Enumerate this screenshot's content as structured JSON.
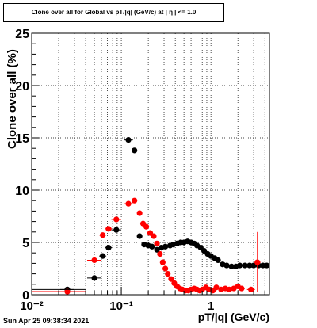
{
  "chart_data": {
    "type": "scatter",
    "title": "Clone  over all for Global vs pT/|q| (GeV/c) at |  η | <= 1.0",
    "xlabel": "pT/|q| (GeV/c)",
    "ylabel": "Clone  over all (%)",
    "x_scale": "log",
    "xlim": [
      0.01,
      4.5
    ],
    "ylim": [
      0,
      25
    ],
    "grid": true,
    "x_tick_labels": [
      {
        "value": 0.01,
        "label": "10⁻²"
      },
      {
        "value": 0.1,
        "label": "10⁻¹"
      },
      {
        "value": 1,
        "label": "1"
      }
    ],
    "y_tick_labels": [
      {
        "value": 0,
        "label": "0"
      },
      {
        "value": 5,
        "label": "5"
      },
      {
        "value": 10,
        "label": "10"
      },
      {
        "value": 15,
        "label": "15"
      },
      {
        "value": 20,
        "label": "20"
      },
      {
        "value": 25,
        "label": "25"
      }
    ],
    "series": [
      {
        "color": "#000000",
        "points": [
          {
            "x": 0.025,
            "y": 0.5
          },
          {
            "x": 0.05,
            "y": 1.6
          },
          {
            "x": 0.062,
            "y": 3.7
          },
          {
            "x": 0.072,
            "y": 4.5
          },
          {
            "x": 0.088,
            "y": 6.2
          },
          {
            "x": 0.12,
            "y": 14.8
          },
          {
            "x": 0.14,
            "y": 13.8
          },
          {
            "x": 0.16,
            "y": 5.6
          },
          {
            "x": 0.18,
            "y": 4.8
          },
          {
            "x": 0.2,
            "y": 4.7
          },
          {
            "x": 0.22,
            "y": 4.6
          },
          {
            "x": 0.25,
            "y": 4.3
          },
          {
            "x": 0.28,
            "y": 4.5
          },
          {
            "x": 0.31,
            "y": 4.6
          },
          {
            "x": 0.35,
            "y": 4.7
          },
          {
            "x": 0.38,
            "y": 4.8
          },
          {
            "x": 0.42,
            "y": 4.9
          },
          {
            "x": 0.46,
            "y": 5.0
          },
          {
            "x": 0.5,
            "y": 5.0
          },
          {
            "x": 0.55,
            "y": 5.1
          },
          {
            "x": 0.6,
            "y": 5.0
          },
          {
            "x": 0.65,
            "y": 4.9
          },
          {
            "x": 0.7,
            "y": 4.7
          },
          {
            "x": 0.77,
            "y": 4.5
          },
          {
            "x": 0.84,
            "y": 4.2
          },
          {
            "x": 0.92,
            "y": 3.9
          },
          {
            "x": 1.0,
            "y": 3.7
          },
          {
            "x": 1.1,
            "y": 3.5
          },
          {
            "x": 1.2,
            "y": 3.3
          },
          {
            "x": 1.35,
            "y": 2.9
          },
          {
            "x": 1.5,
            "y": 2.8
          },
          {
            "x": 1.7,
            "y": 2.7
          },
          {
            "x": 1.9,
            "y": 2.7
          },
          {
            "x": 2.1,
            "y": 2.8
          },
          {
            "x": 2.4,
            "y": 2.8
          },
          {
            "x": 2.7,
            "y": 2.8
          },
          {
            "x": 3.0,
            "y": 2.8
          },
          {
            "x": 3.4,
            "y": 2.8
          },
          {
            "x": 3.8,
            "y": 2.8
          },
          {
            "x": 4.2,
            "y": 2.8
          }
        ]
      },
      {
        "color": "#ff0000",
        "points": [
          {
            "x": 0.025,
            "y": 0.3
          },
          {
            "x": 0.05,
            "y": 3.3
          },
          {
            "x": 0.062,
            "y": 5.7
          },
          {
            "x": 0.072,
            "y": 6.3
          },
          {
            "x": 0.088,
            "y": 7.2
          },
          {
            "x": 0.12,
            "y": 8.7
          },
          {
            "x": 0.14,
            "y": 9.0
          },
          {
            "x": 0.16,
            "y": 7.8
          },
          {
            "x": 0.175,
            "y": 6.8
          },
          {
            "x": 0.19,
            "y": 6.5
          },
          {
            "x": 0.21,
            "y": 5.9
          },
          {
            "x": 0.23,
            "y": 5.6
          },
          {
            "x": 0.25,
            "y": 4.9
          },
          {
            "x": 0.27,
            "y": 3.9
          },
          {
            "x": 0.29,
            "y": 3.1
          },
          {
            "x": 0.31,
            "y": 2.5
          },
          {
            "x": 0.33,
            "y": 2.0
          },
          {
            "x": 0.36,
            "y": 1.5
          },
          {
            "x": 0.39,
            "y": 1.1
          },
          {
            "x": 0.42,
            "y": 0.8
          },
          {
            "x": 0.45,
            "y": 0.6
          },
          {
            "x": 0.48,
            "y": 0.5
          },
          {
            "x": 0.52,
            "y": 0.4
          },
          {
            "x": 0.56,
            "y": 0.4
          },
          {
            "x": 0.6,
            "y": 0.5
          },
          {
            "x": 0.65,
            "y": 0.6
          },
          {
            "x": 0.7,
            "y": 0.5
          },
          {
            "x": 0.75,
            "y": 0.4
          },
          {
            "x": 0.8,
            "y": 0.5
          },
          {
            "x": 0.88,
            "y": 0.7
          },
          {
            "x": 0.95,
            "y": 0.5
          },
          {
            "x": 1.05,
            "y": 0.4
          },
          {
            "x": 1.15,
            "y": 0.7
          },
          {
            "x": 1.3,
            "y": 0.5
          },
          {
            "x": 1.45,
            "y": 0.6
          },
          {
            "x": 1.6,
            "y": 0.5
          },
          {
            "x": 1.8,
            "y": 0.6
          },
          {
            "x": 2.0,
            "y": 0.8
          },
          {
            "x": 2.2,
            "y": 0.6
          },
          {
            "x": 2.8,
            "y": 0.5
          },
          {
            "x": 3.3,
            "y": 3.1
          }
        ]
      }
    ]
  },
  "footer": {
    "timestamp": "Sun Apr 25 09:38:34 2021"
  }
}
